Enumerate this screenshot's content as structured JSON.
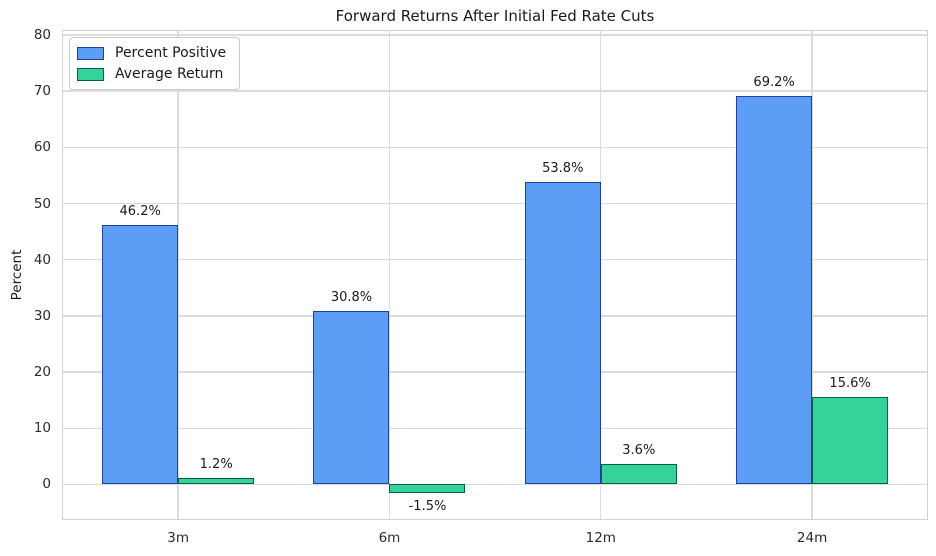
{
  "chart_data": {
    "type": "bar",
    "title": "Forward Returns After Initial Fed Rate Cuts",
    "xlabel": "",
    "ylabel": "Percent",
    "categories": [
      "3m",
      "6m",
      "12m",
      "24m"
    ],
    "series": [
      {
        "name": "Percent Positive",
        "color": "#5c9df6",
        "edge_color": "#20409a",
        "values": [
          46.2,
          30.8,
          53.8,
          69.2
        ],
        "labels": [
          "46.2%",
          "30.8%",
          "53.8%",
          "69.2%"
        ]
      },
      {
        "name": "Average Return",
        "color": "#34d399",
        "edge_color": "#0a6148",
        "values": [
          1.2,
          -1.5,
          3.6,
          15.6
        ],
        "labels": [
          "1.2%",
          "-1.5%",
          "3.6%",
          "15.6%"
        ]
      }
    ],
    "yticks": [
      0,
      10,
      20,
      30,
      40,
      50,
      60,
      70,
      80
    ],
    "ylim": [
      -6.5,
      80.7
    ],
    "grid": true,
    "legend_position": "upper-left",
    "colors": {
      "grid": "#dcdcdc",
      "spine": "#d2d2d2",
      "text": "#1a1a1a"
    }
  }
}
